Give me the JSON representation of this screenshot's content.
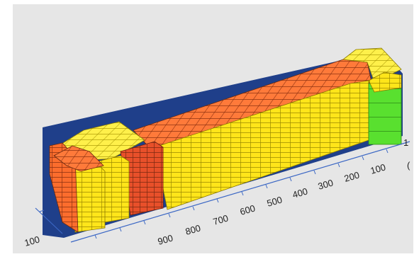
{
  "viewer": {
    "background": "#e6e6e6"
  },
  "axis": {
    "labels": [
      "100",
      "200",
      "300",
      "400",
      "500",
      "600",
      "700",
      "800",
      "900"
    ],
    "near_edge_label": "100",
    "clipped_label_right": "1",
    "clipped_label_far_right": "(",
    "color": "#3a66c4"
  },
  "container": {
    "frame_color": "#1f3f8a",
    "box_colors": {
      "yellow": "#ffe51a",
      "orange": "#fb6d2d",
      "red_orange": "#e8502a",
      "green": "#59e02f"
    }
  }
}
